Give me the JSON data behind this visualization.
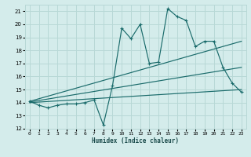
{
  "xlabel": "Humidex (Indice chaleur)",
  "xlim": [
    -0.5,
    23.5
  ],
  "ylim": [
    12,
    21.5
  ],
  "yticks": [
    12,
    13,
    14,
    15,
    16,
    17,
    18,
    19,
    20,
    21
  ],
  "xticks": [
    0,
    1,
    2,
    3,
    4,
    5,
    6,
    7,
    8,
    9,
    10,
    11,
    12,
    13,
    14,
    15,
    16,
    17,
    18,
    19,
    20,
    21,
    22,
    23
  ],
  "bg_color": "#d4eceb",
  "grid_color": "#b8d8d6",
  "line_color": "#1a6b6b",
  "zigzag_x": [
    0,
    1,
    2,
    3,
    4,
    5,
    6,
    7,
    8,
    9,
    10,
    11,
    12,
    13,
    14,
    15,
    16,
    17,
    18,
    19,
    20,
    21,
    22,
    23
  ],
  "zigzag_y": [
    14.1,
    13.8,
    13.6,
    13.8,
    13.9,
    13.9,
    14.0,
    14.2,
    12.3,
    15.3,
    19.7,
    18.9,
    20.0,
    17.0,
    17.1,
    21.2,
    20.6,
    20.3,
    18.3,
    18.7,
    18.7,
    16.7,
    15.5,
    14.8
  ],
  "upper_line": [
    [
      0,
      14.1
    ],
    [
      23,
      18.7
    ]
  ],
  "mid_line": [
    [
      0,
      14.05
    ],
    [
      23,
      16.7
    ]
  ],
  "lower_line": [
    [
      0,
      14.0
    ],
    [
      23,
      15.0
    ]
  ]
}
